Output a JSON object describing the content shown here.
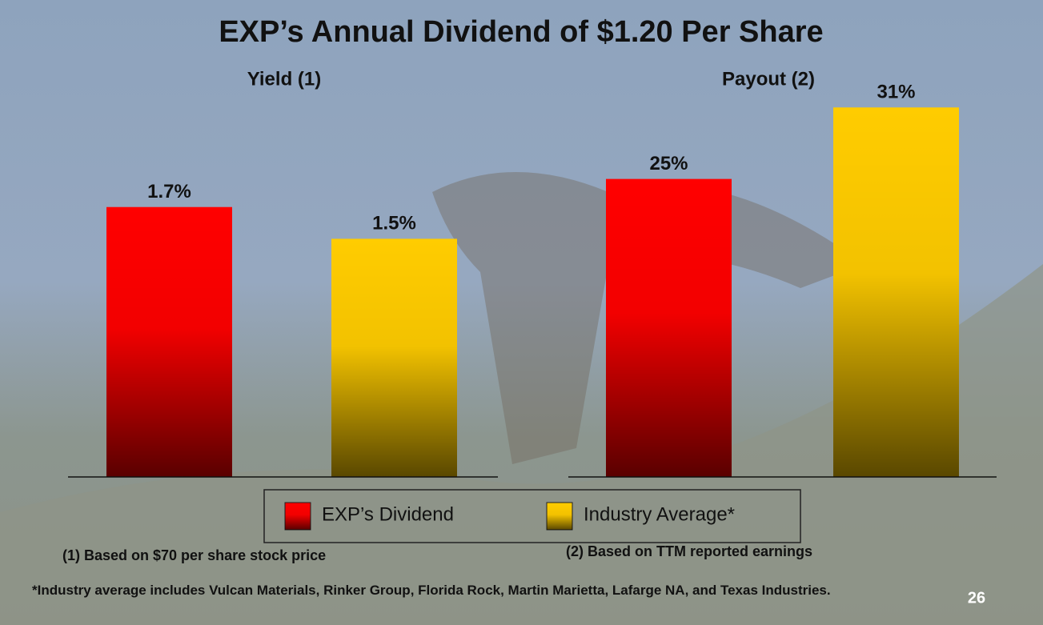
{
  "title": "EXP’s Annual Dividend of $1.20 Per Share",
  "legend": [
    {
      "name": "EXP’s Dividend",
      "color": "#ff0000"
    },
    {
      "name": "Industry Average*",
      "color": "#ffcc00"
    }
  ],
  "chart_data": [
    {
      "type": "bar",
      "title": "Yield (1)",
      "values": [
        1.7,
        1.5
      ],
      "value_labels": [
        "1.7%",
        "1.5%"
      ],
      "colors": [
        "#ff0000",
        "#ffcc00"
      ],
      "ylim": [
        0,
        2.5
      ],
      "footnote": "(1) Based on $70 per share stock price"
    },
    {
      "type": "bar",
      "title": "Payout (2)",
      "values": [
        25,
        31
      ],
      "value_labels": [
        "25%",
        "31%"
      ],
      "colors": [
        "#ff0000",
        "#ffcc00"
      ],
      "ylim": [
        0,
        33.3
      ],
      "footnote": "(2) Based on TTM reported earnings"
    }
  ],
  "footnote": "*Industry average includes Vulcan Materials, Rinker Group, Florida Rock, Martin Marietta, Lafarge NA, and Texas Industries.",
  "page_number": "26"
}
